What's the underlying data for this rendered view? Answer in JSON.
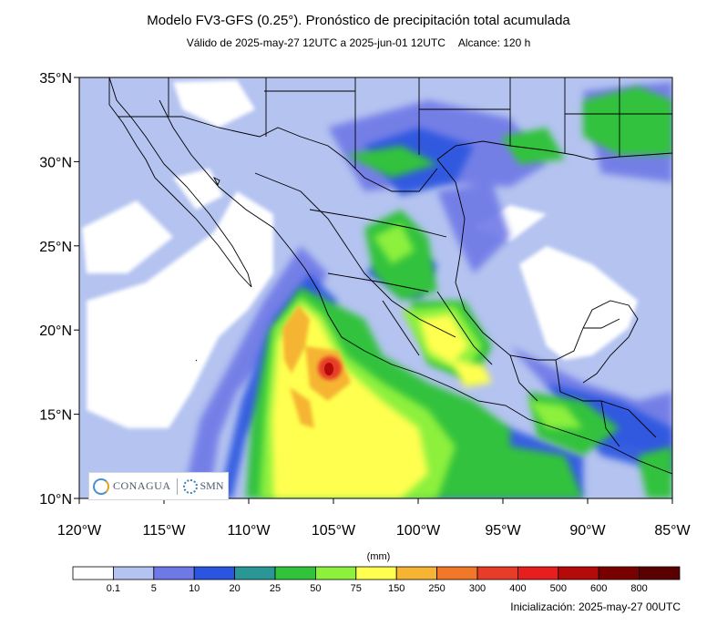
{
  "header": {
    "title": "Modelo FV3-GFS (0.25°). Pronóstico de precipitación total acumulada",
    "valid": "Válido de 2025-may-27 12UTC a 2025-jun-01 12UTC",
    "range": "Alcance: 120 h"
  },
  "map": {
    "lat_range": [
      10,
      35
    ],
    "lon_range": [
      -120,
      -85
    ],
    "lat_ticks": [
      "35°N",
      "30°N",
      "25°N",
      "20°N",
      "15°N",
      "10°N"
    ],
    "lon_ticks": [
      "120°W",
      "115°W",
      "110°W",
      "105°W",
      "100°W",
      "95°W",
      "90°W",
      "85°W"
    ]
  },
  "colorbar": {
    "units": "(mm)",
    "labels": [
      "0.1",
      "5",
      "10",
      "20",
      "25",
      "50",
      "75",
      "150",
      "250",
      "300",
      "400",
      "500",
      "600",
      "800"
    ],
    "colors": [
      "#ffffff",
      "#b4c3f0",
      "#6e78e6",
      "#2a55e0",
      "#2a9696",
      "#32c23c",
      "#8cf03c",
      "#ffff50",
      "#f5b432",
      "#f07828",
      "#e63c28",
      "#e61e1e",
      "#b40a0a",
      "#780000",
      "#5a0000"
    ]
  },
  "logos": {
    "org1": "CONAGUA",
    "org2": "SMN"
  },
  "footer": {
    "init": "Inicialización: 2025-may-27 00UTC"
  }
}
